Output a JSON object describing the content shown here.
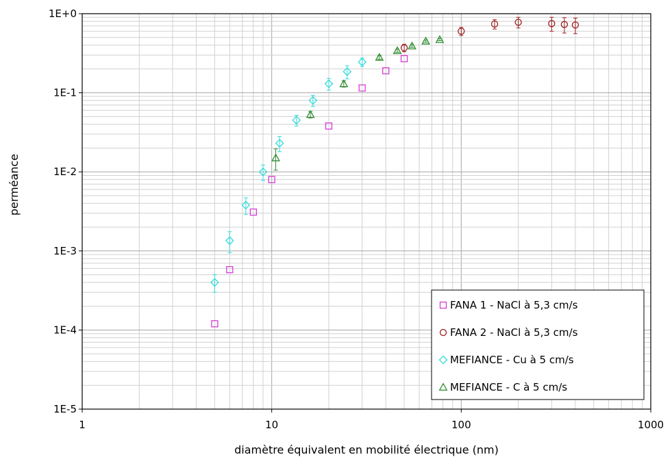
{
  "chart_data": {
    "type": "scatter",
    "title": "",
    "xlabel": "diamètre équivalent en mobilité électrique (nm)",
    "ylabel": "perméance",
    "x_scale": "log",
    "y_scale": "log",
    "xlim": [
      1,
      1000
    ],
    "ylim": [
      1e-05,
      1
    ],
    "x_ticks": [
      {
        "value": 1,
        "label": "1"
      },
      {
        "value": 10,
        "label": "10"
      },
      {
        "value": 100,
        "label": "100"
      },
      {
        "value": 1000,
        "label": "1000"
      }
    ],
    "y_ticks": [
      {
        "value": 1e-05,
        "label": "1E-5"
      },
      {
        "value": 0.0001,
        "label": "1E-4"
      },
      {
        "value": 0.001,
        "label": "1E-3"
      },
      {
        "value": 0.01,
        "label": "1E-2"
      },
      {
        "value": 0.1,
        "label": "1E-1"
      },
      {
        "value": 1,
        "label": "1E+0"
      }
    ],
    "grid": true,
    "legend_position": "bottom-right",
    "series": [
      {
        "name": "FANA 1 - NaCl à 5,3 cm/s",
        "marker": "square",
        "color": "#d63bd6",
        "points": [
          {
            "x": 5,
            "y": 0.00012
          },
          {
            "x": 6,
            "y": 0.00058
          },
          {
            "x": 8,
            "y": 0.0031
          },
          {
            "x": 10,
            "y": 0.008
          },
          {
            "x": 20,
            "y": 0.038
          },
          {
            "x": 30,
            "y": 0.115
          },
          {
            "x": 40,
            "y": 0.19
          },
          {
            "x": 50,
            "y": 0.27
          }
        ]
      },
      {
        "name": "FANA 2 - NaCl à 5,3 cm/s",
        "marker": "circle",
        "color": "#9a1c1c",
        "points": [
          {
            "x": 50,
            "y": 0.37,
            "err": 0.04
          },
          {
            "x": 100,
            "y": 0.6,
            "err": 0.07
          },
          {
            "x": 150,
            "y": 0.74,
            "err": 0.1
          },
          {
            "x": 200,
            "y": 0.78,
            "err": 0.12
          },
          {
            "x": 300,
            "y": 0.75,
            "err": 0.15
          },
          {
            "x": 350,
            "y": 0.73,
            "err": 0.16
          },
          {
            "x": 400,
            "y": 0.72,
            "err": 0.16
          }
        ]
      },
      {
        "name": "MEFIANCE - Cu à 5 cm/s",
        "marker": "diamond",
        "color": "#33dada",
        "points": [
          {
            "x": 5,
            "y": 0.0004,
            "err": 0.0001
          },
          {
            "x": 6,
            "y": 0.00135,
            "err": 0.0004
          },
          {
            "x": 7.3,
            "y": 0.0038,
            "err": 0.0009
          },
          {
            "x": 9,
            "y": 0.01,
            "err": 0.0022
          },
          {
            "x": 11,
            "y": 0.023,
            "err": 0.005
          },
          {
            "x": 13.5,
            "y": 0.045,
            "err": 0.007
          },
          {
            "x": 16.5,
            "y": 0.08,
            "err": 0.013
          },
          {
            "x": 20,
            "y": 0.13,
            "err": 0.022
          },
          {
            "x": 25,
            "y": 0.185,
            "err": 0.035
          },
          {
            "x": 30,
            "y": 0.245,
            "err": 0.03
          }
        ]
      },
      {
        "name": "MEFIANCE - C à 5 cm/s",
        "marker": "triangle",
        "color": "#2e8b2e",
        "points": [
          {
            "x": 10.5,
            "y": 0.015,
            "err": 0.0045
          },
          {
            "x": 16,
            "y": 0.053,
            "err": 0.005
          },
          {
            "x": 24,
            "y": 0.13,
            "err": 0.012
          },
          {
            "x": 37,
            "y": 0.28,
            "err": 0.015
          },
          {
            "x": 46,
            "y": 0.34,
            "err": 0.015
          },
          {
            "x": 55,
            "y": 0.39,
            "err": 0.015
          },
          {
            "x": 65,
            "y": 0.45,
            "err": 0.015
          },
          {
            "x": 77,
            "y": 0.47,
            "err": 0.015
          }
        ]
      }
    ]
  }
}
